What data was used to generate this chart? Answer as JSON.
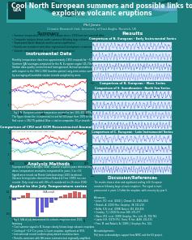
{
  "title_line1": "Cool North European summers and possible links to",
  "title_line2": "explosive volcanic eruptions",
  "author": "Phil Jones",
  "affiliation": "Climatic Research Unit, University of East Anglia, Norwich, UK",
  "bg_color": "#1b7b7b",
  "panel_bg_white": "#ffffff",
  "panel_bg_light": "#ddeeff",
  "title_color": "#ffffff",
  "section_label_color": "#ffffff",
  "header_dark": "#0d5555",
  "header_mid": "#1a8888",
  "header_light": "#3aacac"
}
